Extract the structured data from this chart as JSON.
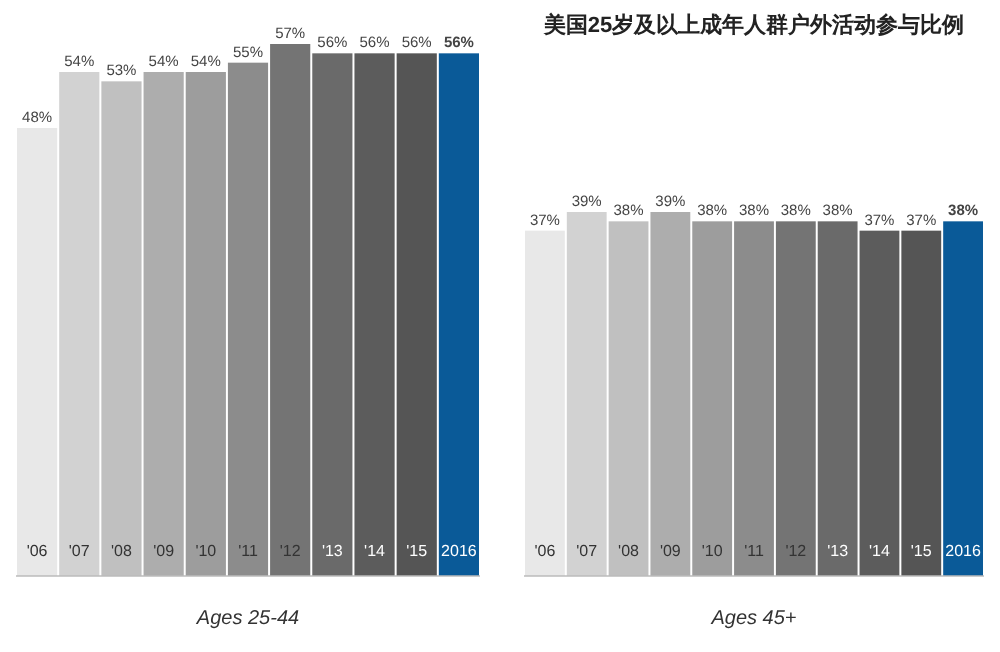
{
  "chart_data": [
    {
      "type": "bar",
      "xlabel": "Ages 25-44",
      "categories": [
        "'06",
        "'07",
        "'08",
        "'09",
        "'10",
        "'11",
        "'12",
        "'13",
        "'14",
        "'15",
        "2016"
      ],
      "values": [
        48,
        54,
        53,
        54,
        54,
        55,
        57,
        56,
        56,
        56,
        56
      ],
      "value_labels": [
        "48%",
        "54%",
        "53%",
        "54%",
        "54%",
        "55%",
        "57%",
        "56%",
        "56%",
        "56%",
        "56%"
      ],
      "colors": [
        "#e8e8e8",
        "#d2d2d2",
        "#c0c0c0",
        "#adadad",
        "#9d9d9d",
        "#8c8c8c",
        "#747474",
        "#6a6a6a",
        "#5c5c5c",
        "#555555",
        "#0a5a98"
      ]
    },
    {
      "type": "bar",
      "title": "美国25岁及以上成年人群户外活动参与比例",
      "xlabel": "Ages 45+",
      "categories": [
        "'06",
        "'07",
        "'08",
        "'09",
        "'10",
        "'11",
        "'12",
        "'13",
        "'14",
        "'15",
        "2016"
      ],
      "values": [
        37,
        39,
        38,
        39,
        38,
        38,
        38,
        38,
        37,
        37,
        38
      ],
      "value_labels": [
        "37%",
        "39%",
        "38%",
        "39%",
        "38%",
        "38%",
        "38%",
        "38%",
        "37%",
        "37%",
        "38%"
      ],
      "colors": [
        "#e8e8e8",
        "#d2d2d2",
        "#c0c0c0",
        "#adadad",
        "#9d9d9d",
        "#8c8c8c",
        "#747474",
        "#6a6a6a",
        "#5c5c5c",
        "#555555",
        "#0a5a98"
      ]
    }
  ]
}
